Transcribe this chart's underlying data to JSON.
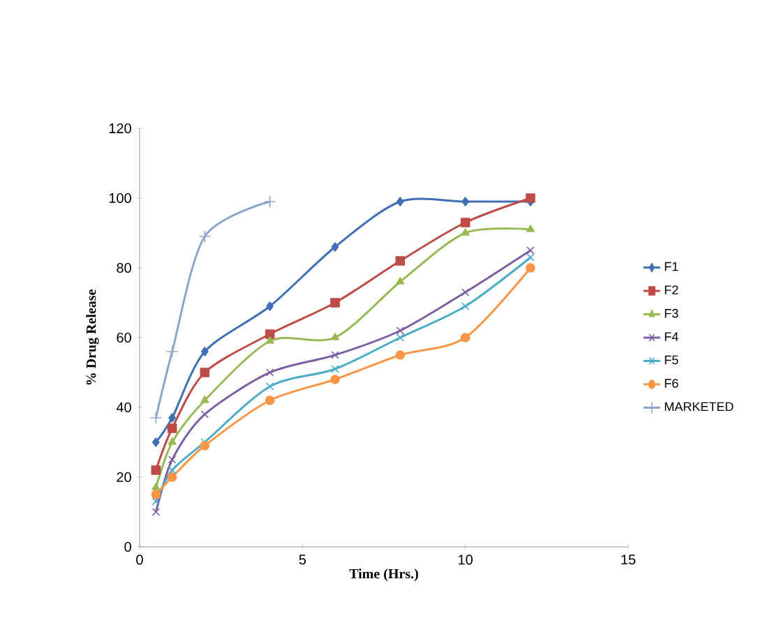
{
  "chart_data": {
    "type": "line",
    "xlabel": "Time (Hrs.)",
    "ylabel": "% Drug Release",
    "x": [
      0.5,
      1,
      2,
      4,
      6,
      8,
      10,
      12
    ],
    "xlim": [
      0,
      15
    ],
    "xticks": [
      0,
      5,
      10,
      15
    ],
    "ylim": [
      0,
      120
    ],
    "yticks": [
      0,
      20,
      40,
      60,
      80,
      100,
      120
    ],
    "grid": false,
    "legend": "right",
    "series": [
      {
        "name": "F1",
        "color": "#3f6fb5",
        "marker": "diamond",
        "values": [
          30,
          37,
          56,
          69,
          86,
          99,
          99,
          99
        ]
      },
      {
        "name": "F2",
        "color": "#be4b48",
        "marker": "square",
        "values": [
          22,
          34,
          50,
          61,
          70,
          82,
          93,
          100
        ]
      },
      {
        "name": "F3",
        "color": "#98b954",
        "marker": "triangle",
        "values": [
          17,
          30,
          42,
          59,
          60,
          76,
          90,
          91
        ]
      },
      {
        "name": "F4",
        "color": "#7d60a0",
        "marker": "cross",
        "values": [
          10,
          25,
          38,
          50,
          55,
          62,
          73,
          85
        ]
      },
      {
        "name": "F5",
        "color": "#4bacc6",
        "marker": "cross",
        "values": [
          13,
          22,
          30,
          46,
          51,
          60,
          69,
          83
        ]
      },
      {
        "name": "F6",
        "color": "#f79646",
        "marker": "circle",
        "values": [
          15,
          20,
          29,
          42,
          48,
          55,
          60,
          80
        ]
      },
      {
        "name": "MARKETED",
        "color": "#8ea5cb",
        "marker": "plus",
        "x": [
          0.5,
          1,
          2,
          4
        ],
        "values": [
          37,
          56,
          89,
          99
        ]
      }
    ]
  }
}
